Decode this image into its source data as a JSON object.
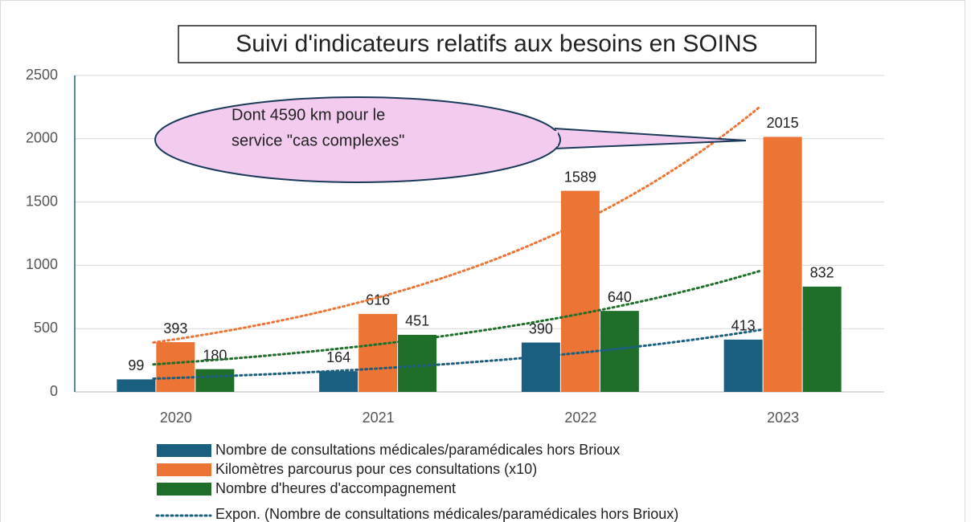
{
  "chart_data": {
    "type": "bar",
    "title": "Suivi d'indicateurs relatifs aux besoins en SOINS",
    "categories": [
      "2020",
      "2021",
      "2022",
      "2023"
    ],
    "series": [
      {
        "name": "Nombre de consultations médicales/paramédicales hors Brioux",
        "color": "#1b5f80",
        "values": [
          99,
          164,
          390,
          413
        ]
      },
      {
        "name": "Kilomètres parcourus pour ces consultations (x10)",
        "color": "#ec7434",
        "values": [
          393,
          616,
          1589,
          2015
        ]
      },
      {
        "name": "Nombre d'heures d'accompagnement",
        "color": "#1f6e2a",
        "values": [
          180,
          451,
          640,
          832
        ]
      }
    ],
    "trendline": "exponential",
    "trendline_legend": "Expon. (Nombre de consultations médicales/paramédicales hors Brioux)",
    "annotation": [
      "Dont 4590 km pour le",
      "service \"cas complexes\""
    ],
    "ylim": [
      0,
      2500
    ],
    "yticks": [
      0,
      500,
      1000,
      1500,
      2000,
      2500
    ],
    "grid": true
  }
}
